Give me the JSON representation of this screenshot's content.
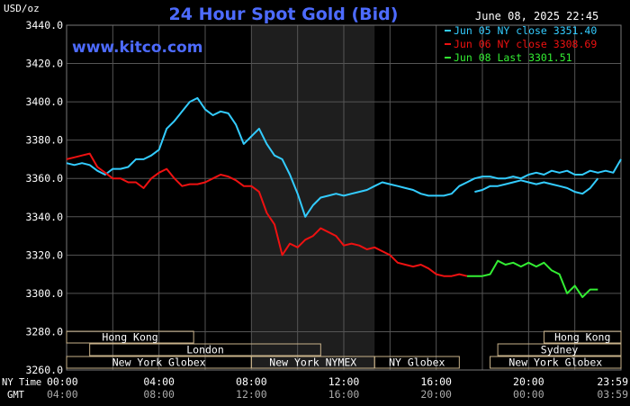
{
  "header": {
    "title": "24 Hour Spot Gold (Bid)",
    "date": "June 08, 2025 22:45",
    "watermark": "www.kitco.com",
    "unit": "USD/oz"
  },
  "legend": [
    {
      "text": "Jun 05 NY close 3351.40",
      "color": "#33ccff"
    },
    {
      "text": "Jun 06 NY close 3308.69",
      "color": "#ee1111"
    },
    {
      "text": "Jun 08 Last 3301.51",
      "color": "#33ee33"
    }
  ],
  "time_labels": {
    "ny": "NY Time",
    "gmt": "GMT"
  },
  "sessions": [
    {
      "label": "Hong Kong",
      "start": 0,
      "end": 8.25,
      "row": 0
    },
    {
      "label": "London",
      "start": 1.5,
      "end": 16.5,
      "row": 1
    },
    {
      "label": "New York Globex",
      "start": 0,
      "end": 12,
      "row": 2
    },
    {
      "label": "New York NYMEX",
      "start": 12,
      "end": 20,
      "row": 2
    },
    {
      "label": "NY Globex",
      "start": 20,
      "end": 25.5,
      "row": 2
    },
    {
      "label": "Hong Kong",
      "start": 31,
      "end": 36,
      "row": 0
    },
    {
      "label": "Sydney",
      "start": 28,
      "end": 36,
      "row": 1
    },
    {
      "label": "New York Globex",
      "start": 27.5,
      "end": 36,
      "row": 2
    }
  ],
  "colors": {
    "background": "#000000",
    "grid": "#555555",
    "text": "#ffffff",
    "title": "#4d6bff",
    "watermark": "#4d6bff",
    "shade": "#1e1e1e",
    "session_box": "#c8b28a",
    "series_prev": "#33ccff",
    "series_mid": "#ee1111",
    "series_green": "#33ee33"
  },
  "chart_data": {
    "type": "line",
    "title": "24 Hour Spot Gold (Bid)",
    "xlabel": "",
    "ylabel": "USD/oz",
    "xlim": [
      0,
      36
    ],
    "ylim": [
      3260,
      3440
    ],
    "yticks": [
      3260,
      3280,
      3300,
      3320,
      3340,
      3360,
      3380,
      3400,
      3420,
      3440
    ],
    "ytick_labels": [
      "3260.0",
      "3280.0",
      "3300.0",
      "3320.0",
      "3340.0",
      "3360.0",
      "3380.0",
      "3400.0",
      "3420.0",
      "3440.0"
    ],
    "xticks": [
      0,
      6,
      12,
      18,
      24,
      30,
      36
    ],
    "xtick_labels_ny": [
      "00:00",
      "04:00",
      "08:00",
      "12:00",
      "16:00",
      "20:00",
      "23:59"
    ],
    "xtick_labels_gmt": [
      "04:00",
      "08:00",
      "12:00",
      "16:00",
      "20:00",
      "00:00",
      "03:59"
    ],
    "shaded_x": [
      12,
      20
    ],
    "grid": true,
    "legend_position": "top-right",
    "series": [
      {
        "name": "Jun 05 NY close 3351.40",
        "color": "#33ccff",
        "x": [
          0,
          0.5,
          1,
          1.5,
          2,
          2.5,
          3,
          3.5,
          4,
          4.5,
          5,
          5.5,
          6,
          6.5,
          7,
          7.5,
          8,
          8.5,
          9,
          9.5,
          10,
          10.5,
          11,
          11.5,
          12,
          12.5,
          13,
          13.5,
          14,
          14.5,
          15,
          15.5,
          16,
          16.5,
          17,
          17.5,
          18,
          18.5,
          19,
          19.5,
          20,
          20.5,
          21,
          21.5,
          22,
          22.5,
          23,
          23.5,
          24,
          24.5,
          25,
          25.5,
          26,
          26.5,
          27,
          27.5,
          28,
          28.5,
          29,
          29.5,
          30,
          30.5,
          31,
          31.5,
          32,
          32.5,
          33,
          33.5,
          34,
          34.5,
          35,
          35.5,
          36
        ],
        "y": [
          3368,
          3367,
          3368,
          3367,
          3364,
          3362,
          3365,
          3365,
          3366,
          3370,
          3370,
          3372,
          3375,
          3386,
          3390,
          3395,
          3400,
          3402,
          3396,
          3393,
          3395,
          3394,
          3388,
          3378,
          3382,
          3386,
          3378,
          3372,
          3370,
          3362,
          3352,
          3340,
          3346,
          3350,
          3351,
          3352,
          3351,
          3352,
          3353,
          3354,
          3356,
          3358,
          3357,
          3356,
          3355,
          3354,
          3352,
          3351,
          3351,
          3351,
          3352,
          3356,
          3358,
          3360,
          3361,
          3361,
          3360,
          3360,
          3361,
          3360,
          3362,
          3363,
          3362,
          3364,
          3363,
          3364,
          3362,
          3362,
          3364,
          3363,
          3364,
          3363,
          3370
        ]
      },
      {
        "name": "Jun 06 NY close 3308.69",
        "color": "#ee1111",
        "x": [
          0,
          0.5,
          1,
          1.5,
          2,
          2.5,
          3,
          3.5,
          4,
          4.5,
          5,
          5.5,
          6,
          6.5,
          7,
          7.5,
          8,
          8.5,
          9,
          9.5,
          10,
          10.5,
          11,
          11.5,
          12,
          12.5,
          13,
          13.5,
          14,
          14.5,
          15,
          15.5,
          16,
          16.5,
          17,
          17.5,
          18,
          18.5,
          19,
          19.5,
          20,
          20.5,
          21,
          21.5,
          22,
          22.5,
          23,
          23.5,
          24,
          24.5,
          25,
          25.5,
          26
        ],
        "y": [
          3370,
          3371,
          3372,
          3373,
          3366,
          3363,
          3360,
          3360,
          3358,
          3358,
          3355,
          3360,
          3363,
          3365,
          3360,
          3356,
          3357,
          3357,
          3358,
          3360,
          3362,
          3361,
          3359,
          3356,
          3356,
          3353,
          3342,
          3336,
          3320,
          3326,
          3324,
          3328,
          3330,
          3334,
          3332,
          3330,
          3325,
          3326,
          3325,
          3323,
          3324,
          3322,
          3320,
          3316,
          3315,
          3314,
          3315,
          3313,
          3310,
          3309,
          3309,
          3310,
          3309
        ]
      },
      {
        "name": "Jun 08 Last 3301.51",
        "color": "#33ee33",
        "x": [
          26,
          26.5,
          27,
          27.5,
          28,
          28.5,
          29,
          29.5,
          30,
          30.5,
          31,
          31.5,
          32,
          32.5,
          33,
          33.5,
          34,
          34.5
        ],
        "y": [
          3309,
          3309,
          3309,
          3310,
          3317,
          3315,
          3316,
          3314,
          3316,
          3314,
          3316,
          3312,
          3310,
          3300,
          3304,
          3298,
          3302,
          3302
        ]
      },
      {
        "name": "",
        "color": "#33ccff",
        "x": [
          26.5,
          27,
          27.5,
          28,
          28.5,
          29,
          29.5,
          30,
          30.5,
          31,
          31.5,
          32,
          32.5,
          33,
          33.5,
          34,
          34.5
        ],
        "y": [
          3353,
          3354,
          3356,
          3356,
          3357,
          3358,
          3359,
          3358,
          3357,
          3358,
          3357,
          3356,
          3355,
          3353,
          3352,
          3355,
          3360
        ]
      }
    ]
  }
}
